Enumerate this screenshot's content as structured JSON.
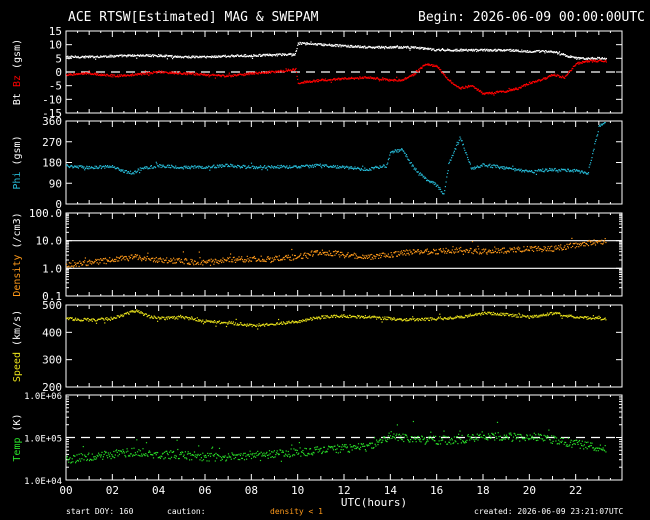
{
  "header": {
    "title": "ACE RTSW[Estimated] MAG & SWEPAM",
    "begin": "Begin: 2026-06-09 00:00:00UTC"
  },
  "footer": {
    "start_doy": "start DOY: 160",
    "caution": "caution:",
    "density_note": "density < 1",
    "created": "created: 2026-06-09 23:21:07UTC"
  },
  "colors": {
    "bt": "#ffffff",
    "bz": "#ff0000",
    "phi": "#27bbd7",
    "density": "#ff9a1a",
    "speed": "#e8e01a",
    "temp": "#28e028",
    "density_note": "#ff9a1a"
  },
  "chart_data": {
    "type": "scatter",
    "xlabel": "UTC(hours)",
    "x_ticks": [
      "00",
      "02",
      "04",
      "06",
      "08",
      "10",
      "12",
      "14",
      "16",
      "18",
      "20",
      "22"
    ],
    "xlim": [
      0,
      24
    ],
    "panels": [
      {
        "id": "mag",
        "ylabel": [
          "Bt",
          "Bz",
          "(gsm)"
        ],
        "ylabel_colors": [
          "bt",
          "bz",
          "white"
        ],
        "ylim": [
          -15,
          15
        ],
        "scale": "linear",
        "y_ticks": [
          15,
          10,
          5,
          0,
          -5,
          -10,
          -15
        ],
        "y_tick_labels": [
          "15",
          "10",
          "5",
          "0",
          "-5",
          "-10",
          "-15"
        ],
        "ref_lines": [
          {
            "y": 0,
            "style": "dashed"
          }
        ],
        "series": [
          {
            "name": "Bt",
            "color": "bt",
            "style": "line",
            "x": [
              0,
              1,
              2,
              3,
              4,
              5,
              6,
              7,
              8,
              9,
              9.9,
              10,
              11,
              12,
              13,
              14,
              14.5,
              15,
              15.5,
              16,
              17,
              18,
              19,
              20,
              21,
              21.5,
              22,
              23,
              23.3
            ],
            "y": [
              5.5,
              5.5,
              5.8,
              6,
              6,
              5.5,
              5.5,
              5.8,
              6,
              6.2,
              6.5,
              10.5,
              10,
              9.5,
              9,
              9,
              9,
              9,
              8.5,
              8,
              8,
              8,
              8,
              7.5,
              7.5,
              6,
              5,
              5,
              5
            ]
          },
          {
            "name": "Bz",
            "color": "bz",
            "style": "line",
            "x": [
              0,
              1,
              2,
              3,
              4,
              5,
              6,
              7,
              8,
              9,
              9.9,
              10,
              11,
              12,
              13,
              14,
              14.5,
              15,
              15.5,
              16,
              16.5,
              17,
              17.5,
              18,
              18.5,
              19,
              19.5,
              20,
              20.5,
              21,
              21.5,
              22,
              22.5,
              23,
              23.3
            ],
            "y": [
              -1,
              -0.5,
              -1.5,
              -1,
              0,
              -0.5,
              -1,
              -1.5,
              -0.5,
              0,
              1,
              -4,
              -3,
              -2.5,
              -2,
              -3,
              -3,
              -1,
              3,
              2,
              -3,
              -6,
              -5,
              -8,
              -7.5,
              -7,
              -6,
              -4,
              -3,
              -1,
              -2,
              3,
              4,
              4,
              4
            ]
          }
        ]
      },
      {
        "id": "phi",
        "ylabel": [
          "Phi",
          "(gsm)"
        ],
        "ylabel_colors": [
          "phi",
          "white"
        ],
        "ylim": [
          0,
          360
        ],
        "scale": "linear",
        "y_ticks": [
          360,
          270,
          180,
          90,
          0
        ],
        "y_tick_labels": [
          "360",
          "270",
          "180",
          "90",
          "0"
        ],
        "series": [
          {
            "name": "Phi",
            "color": "phi",
            "style": "dots",
            "x": [
              0,
              1,
              2,
              2.8,
              3.2,
              4,
              5,
              6,
              7,
              8,
              9,
              10,
              11,
              12,
              13,
              13.8,
              14,
              14.5,
              15,
              15.5,
              16,
              16.3,
              16.5,
              17,
              17.5,
              18,
              19,
              20,
              21,
              22,
              22.5,
              23,
              23.3
            ],
            "y": [
              165,
              158,
              162,
              130,
              155,
              165,
              158,
              160,
              167,
              158,
              162,
              160,
              168,
              158,
              150,
              165,
              225,
              235,
              155,
              110,
              80,
              40,
              170,
              290,
              150,
              170,
              155,
              140,
              150,
              145,
              130,
              340,
              360
            ]
          }
        ]
      },
      {
        "id": "density",
        "ylabel": [
          "Density",
          "(/cm3)"
        ],
        "ylabel_colors": [
          "density",
          "white"
        ],
        "ylim": [
          0.1,
          100
        ],
        "scale": "log",
        "y_ticks": [
          100,
          10,
          1,
          0.1
        ],
        "y_tick_labels": [
          "100.0",
          "10.0",
          "1.0",
          "0.1"
        ],
        "ref_lines": [
          {
            "y": 10,
            "style": "solid"
          },
          {
            "y": 1,
            "style": "solid"
          }
        ],
        "series": [
          {
            "name": "Density",
            "color": "density",
            "style": "dots",
            "x": [
              0,
              1,
              2,
              3,
              4,
              5,
              6,
              7,
              8,
              9,
              10,
              11,
              12,
              13,
              14,
              15,
              16,
              17,
              18,
              19,
              20,
              21,
              22,
              23,
              23.3
            ],
            "y": [
              1.3,
              1.6,
              2,
              2.5,
              2,
              1.8,
              1.6,
              2,
              2.2,
              2.2,
              2.5,
              4,
              3,
              2.5,
              3,
              4,
              4,
              4.5,
              4,
              4.5,
              5,
              5,
              7,
              9,
              10
            ]
          }
        ]
      },
      {
        "id": "speed",
        "ylabel": [
          "Speed",
          "(km/s)"
        ],
        "ylabel_colors": [
          "speed",
          "white"
        ],
        "ylim": [
          200,
          500
        ],
        "scale": "linear",
        "y_ticks": [
          500,
          400,
          300,
          200
        ],
        "y_tick_labels": [
          "500",
          "400",
          "300",
          "200"
        ],
        "series": [
          {
            "name": "Speed",
            "color": "speed",
            "style": "dots",
            "x": [
              0,
              1,
              2,
              3,
              3.5,
              4,
              5,
              6,
              7,
              8,
              9,
              10,
              11,
              12,
              13,
              14,
              15,
              16,
              17,
              18,
              19,
              20,
              21,
              22,
              23,
              23.3
            ],
            "y": [
              450,
              445,
              450,
              480,
              460,
              450,
              455,
              440,
              435,
              425,
              430,
              440,
              455,
              460,
              455,
              450,
              445,
              450,
              455,
              470,
              465,
              455,
              470,
              455,
              450,
              450
            ]
          }
        ]
      },
      {
        "id": "temp",
        "ylabel": [
          "Temp",
          "(K)"
        ],
        "ylabel_colors": [
          "temp",
          "white"
        ],
        "ylim": [
          10000,
          1000000
        ],
        "scale": "log",
        "y_ticks": [
          1000000,
          100000,
          10000
        ],
        "y_tick_labels": [
          "1.0E+06",
          "1.0E+05",
          "1.0E+04"
        ],
        "ref_lines": [
          {
            "y": 100000,
            "style": "dashed"
          }
        ],
        "series": [
          {
            "name": "Temp",
            "color": "temp",
            "style": "dots",
            "x": [
              0,
              1,
              2,
              3,
              4,
              5,
              6,
              7,
              8,
              9,
              10,
              11,
              12,
              13,
              13.8,
              14,
              15,
              16,
              17,
              18,
              19,
              20,
              21,
              22,
              23,
              23.3
            ],
            "y": [
              30000,
              35000,
              40000,
              45000,
              40000,
              38000,
              35000,
              35000,
              38000,
              40000,
              45000,
              50000,
              55000,
              60000,
              90000,
              110000,
              90000,
              85000,
              90000,
              110000,
              100000,
              105000,
              90000,
              70000,
              60000,
              55000
            ]
          }
        ]
      }
    ]
  }
}
